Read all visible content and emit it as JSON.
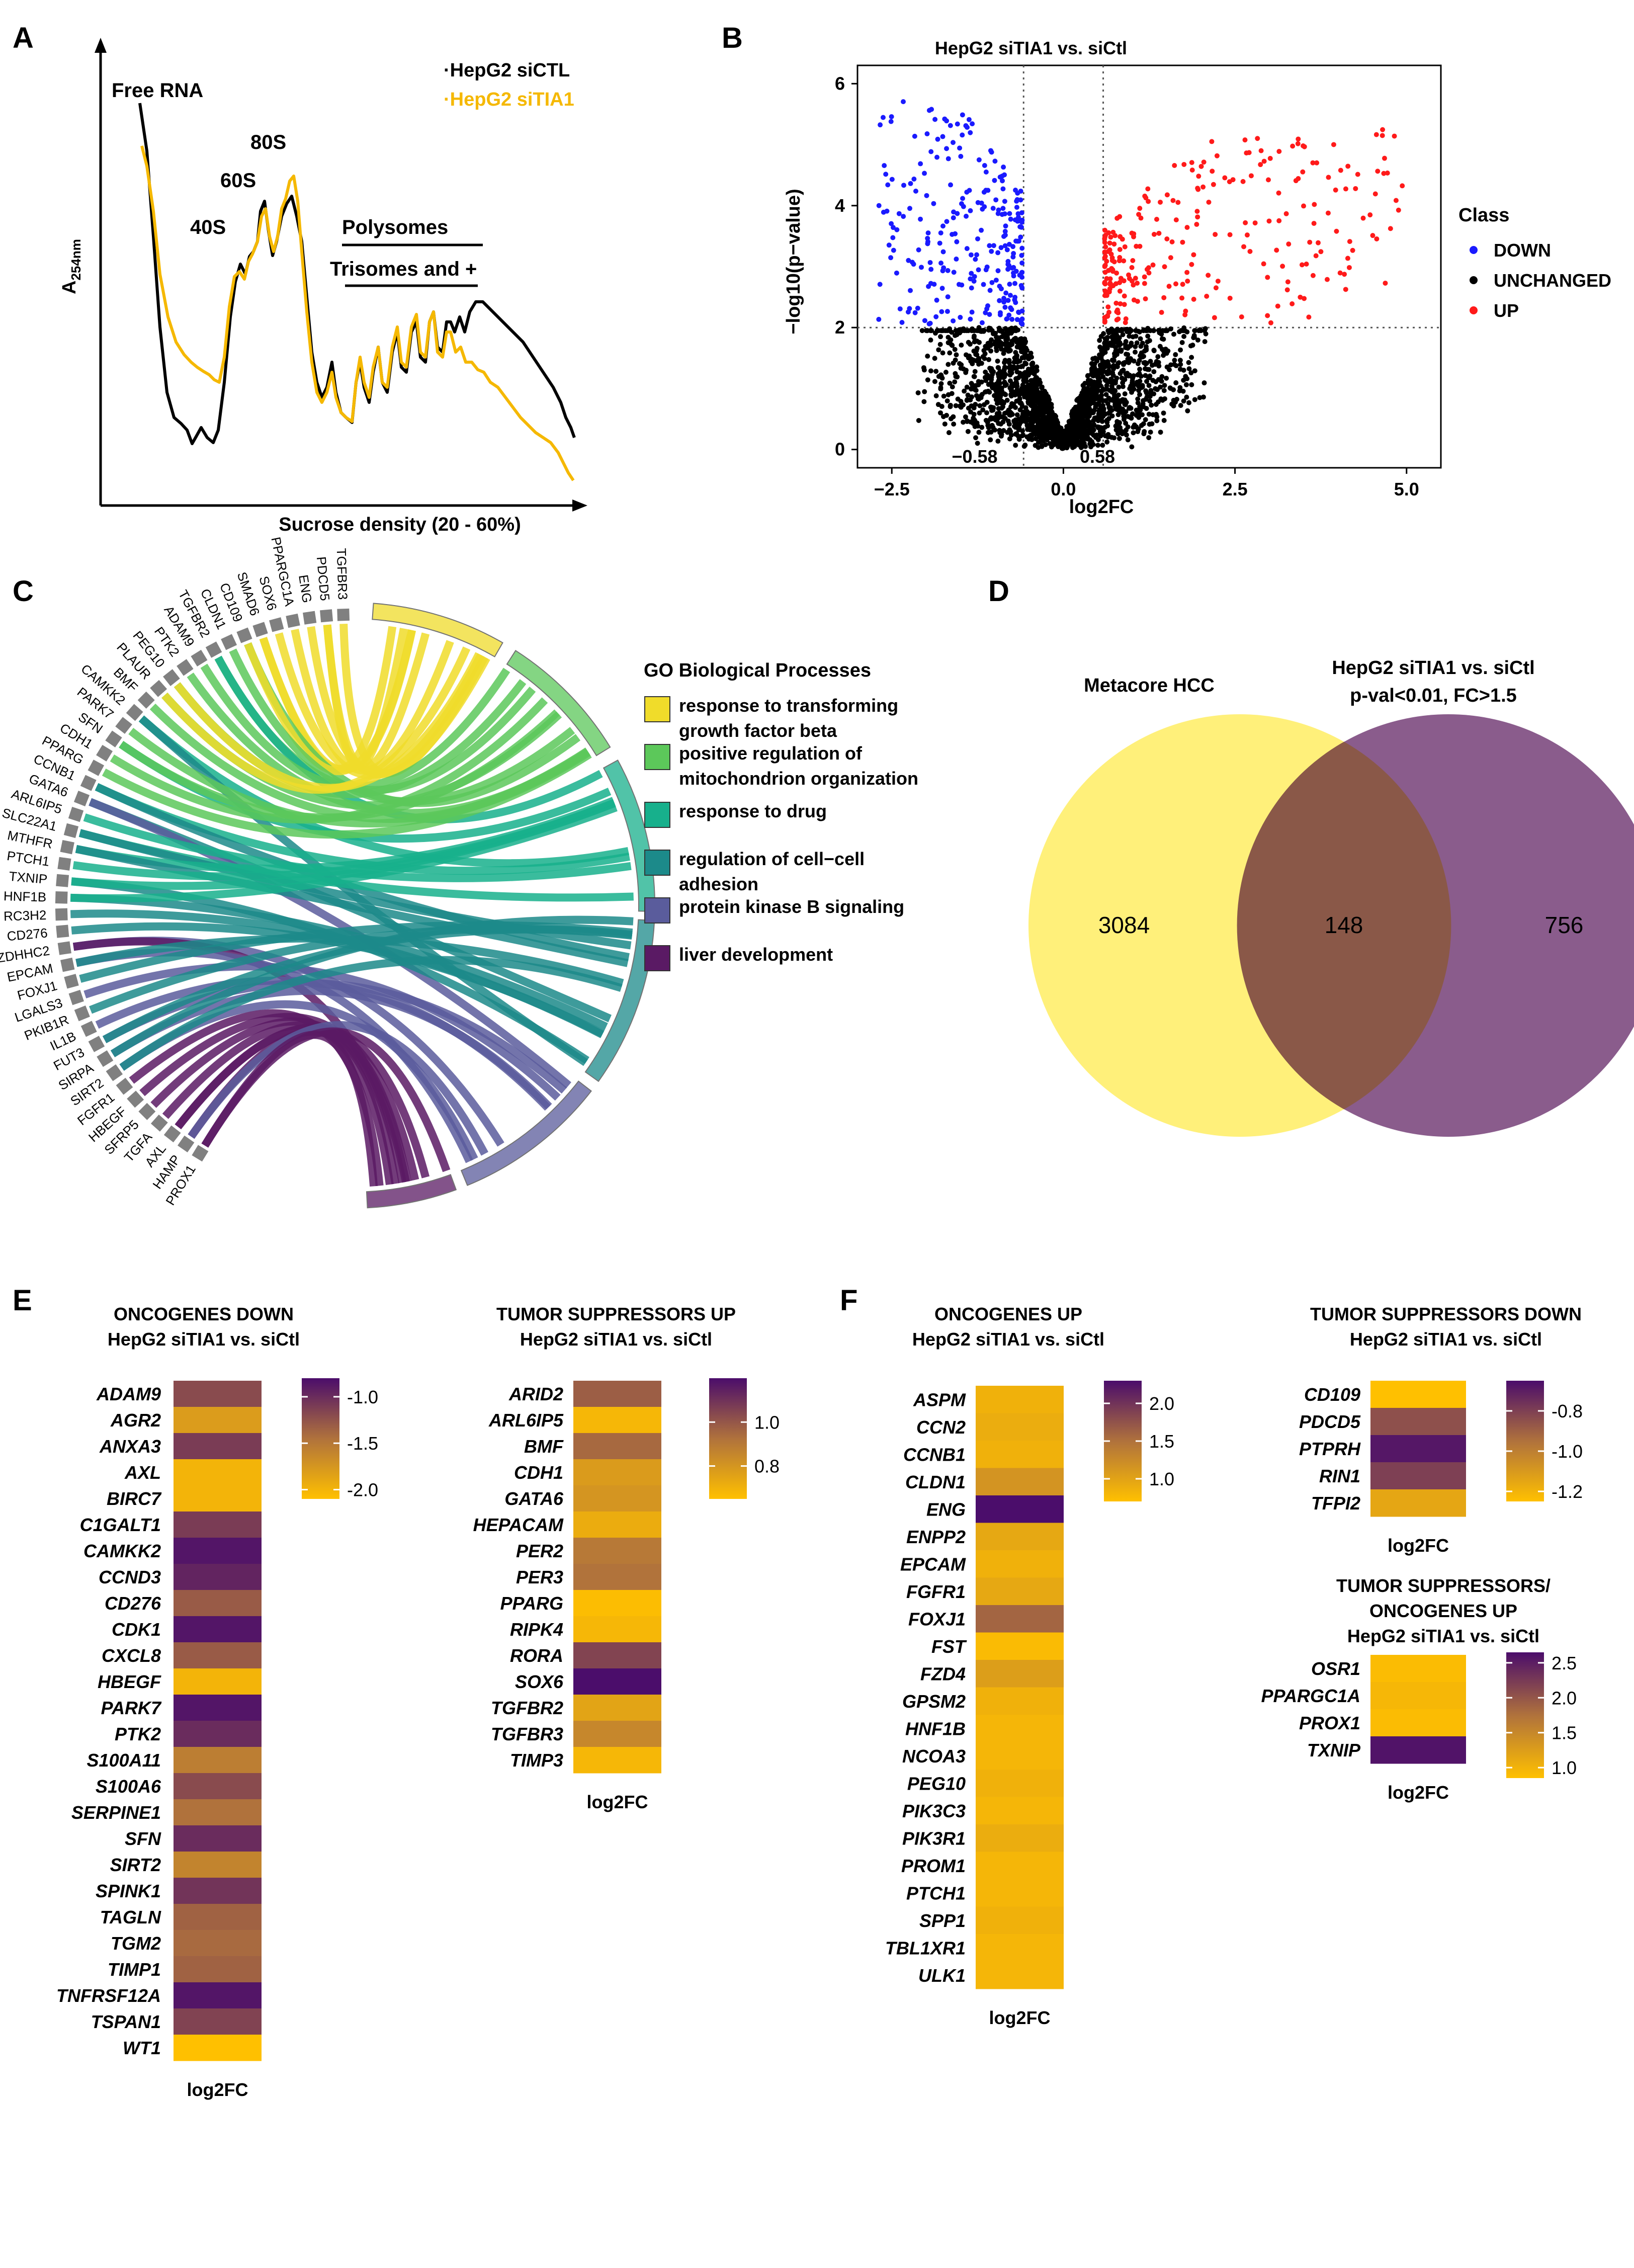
{
  "colors": {
    "ctl": "#000000",
    "tia": "#f5b800",
    "down": "#1a1aff",
    "up": "#ff1a1a",
    "unchanged": "#000000",
    "venn_left": "#fff07a",
    "venn_right": "#8a5c8c",
    "venn_overlap": "#8a5848",
    "grad_low": "#ffc000",
    "grad_high": "#4b0d6b"
  },
  "panelA": {
    "letter": "A",
    "ylabel": "A",
    "ylabel_sub": "254nm",
    "xlabel": "Sucrose density (20 - 60%)",
    "legend": [
      "HepG2 siCTL",
      "HepG2 siTIA1"
    ],
    "peaks": {
      "free": "Free RNA",
      "s40": "40S",
      "s60": "60S",
      "s80": "80S",
      "poly": "Polysomes",
      "tri": "Trisomes and +"
    }
  },
  "panelB": {
    "letter": "B",
    "title": "HepG2 siTIA1 vs. siCtl",
    "xlabel": "log2FC",
    "ylabel": "−log10(p−value)",
    "xticks": [
      "−2.5",
      "0.0",
      "2.5",
      "5.0"
    ],
    "yticks": [
      "0",
      "2",
      "4",
      "6"
    ],
    "thr_left": "−0.58",
    "thr_right": "0.58",
    "legend_title": "Class",
    "legend": [
      "DOWN",
      "UNCHANGED",
      "UP"
    ]
  },
  "panelC": {
    "letter": "C",
    "legend_title": "GO Biological Processes",
    "terms": [
      {
        "label": "response to transforming growth factor beta",
        "color": "#f0dc2a"
      },
      {
        "label": "positive regulation of mitochondrion organization",
        "color": "#5cc85a"
      },
      {
        "label": "response to drug",
        "color": "#17b08c"
      },
      {
        "label": "regulation of cell−cell adhesion",
        "color": "#1c8a8a"
      },
      {
        "label": "protein kinase B signaling",
        "color": "#5a5c9c"
      },
      {
        "label": "liver development",
        "color": "#5a1a64"
      }
    ],
    "genes": [
      "TGFBR3",
      "PDCD5",
      "ENG",
      "PPARGC1A",
      "SOX6",
      "SMAD6",
      "CD109",
      "CLDN1",
      "TGFBR2",
      "ADAM9",
      "PTK2",
      "PEG10",
      "PLAUR",
      "BMF",
      "CAMKK2",
      "PARK7",
      "SFN",
      "CDH1",
      "PPARG",
      "CCNB1",
      "GATA6",
      "ARL6IP5",
      "SLC22A1",
      "MTHFR",
      "PTCH1",
      "TXNIP",
      "HNF1B",
      "RC3H2",
      "CD276",
      "ZDHHC2",
      "EPCAM",
      "FOXJ1",
      "LGALS3",
      "PKIB1R",
      "IL1B",
      "FUT3",
      "SIRPA",
      "SIRT2",
      "FGFR1",
      "HBEGF",
      "SFRP5",
      "TGFA",
      "AXL",
      "HAMP",
      "PROX1"
    ]
  },
  "panelD": {
    "letter": "D",
    "left_title": "Metacore HCC",
    "right_title_1": "HepG2 siTIA1 vs. siCtl",
    "right_title_2": "p-val<0.01, FC>1.5",
    "left_only": "3084",
    "overlap": "148",
    "right_only": "756"
  },
  "panelE": {
    "letter": "E",
    "xlabel": "log2FC"
  },
  "panelF": {
    "letter": "F",
    "xlabel": "log2FC"
  },
  "chart_data": [
    {
      "type": "heatmap",
      "title": "ONCOGENES DOWN",
      "subtitle": "HepG2 siTIA1 vs. siCtl",
      "xlabel": "log2FC",
      "range": [
        -2.1,
        -0.8
      ],
      "ticks": [
        "-1.0",
        "-1.5",
        "-2.0"
      ],
      "tick_values": [
        -1.0,
        -1.5,
        -2.0
      ],
      "genes": [
        "ADAM9",
        "AGR2",
        "ANXA3",
        "AXL",
        "BIRC7",
        "C1GALT1",
        "CAMKK2",
        "CCND3",
        "CD276",
        "CDK1",
        "CXCL8",
        "HBEGF",
        "PARK7",
        "PTK2",
        "S100A11",
        "S100A6",
        "SERPINE1",
        "SFN",
        "SIRT2",
        "SPINK1",
        "TAGLN",
        "TGM2",
        "TIMP1",
        "TNFRSF12A",
        "TSPAN1",
        "WT1"
      ],
      "values": [
        -1.2,
        -1.8,
        -1.1,
        -2.0,
        -2.0,
        -1.1,
        -0.85,
        -0.95,
        -1.3,
        -0.85,
        -1.3,
        -2.0,
        -0.85,
        -1.0,
        -1.55,
        -1.2,
        -1.45,
        -1.0,
        -1.6,
        -1.05,
        -1.35,
        -1.4,
        -1.35,
        -0.85,
        -1.15,
        -2.1
      ]
    },
    {
      "type": "heatmap",
      "title": "TUMOR SUPPRESSORS UP",
      "subtitle": "HepG2 siTIA1 vs. siCtl",
      "xlabel": "log2FC",
      "range": [
        0.65,
        1.2
      ],
      "ticks": [
        "1.0",
        "0.8"
      ],
      "tick_values": [
        1.0,
        0.8
      ],
      "genes": [
        "ARID2",
        "ARL6IP5",
        "BMF",
        "CDH1",
        "GATA6",
        "HEPACAM",
        "PER2",
        "PER3",
        "PPARG",
        "RIPK4",
        "RORA",
        "SOX6",
        "TGFBR2",
        "TGFBR3",
        "TIMP3"
      ],
      "values": [
        0.98,
        0.68,
        0.95,
        0.78,
        0.8,
        0.72,
        0.9,
        0.92,
        0.66,
        0.68,
        1.05,
        1.2,
        0.75,
        0.85,
        0.68
      ]
    },
    {
      "type": "heatmap",
      "title": "ONCOGENES UP",
      "subtitle": "HepG2 siTIA1 vs. siCtl",
      "xlabel": "log2FC",
      "range": [
        0.7,
        2.3
      ],
      "ticks": [
        "2.0",
        "1.5",
        "1.0"
      ],
      "tick_values": [
        2.0,
        1.5,
        1.0
      ],
      "genes": [
        "ASPM",
        "CCN2",
        "CCNB1",
        "CLDN1",
        "ENG",
        "ENPP2",
        "EPCAM",
        "FGFR1",
        "FOXJ1",
        "FST",
        "FZD4",
        "GPSM2",
        "HNF1B",
        "NCOA3",
        "PEG10",
        "PIK3C3",
        "PIK3R1",
        "PROM1",
        "PTCH1",
        "SPP1",
        "TBL1XR1",
        "ULK1"
      ],
      "values": [
        0.85,
        0.9,
        0.85,
        1.15,
        2.3,
        0.95,
        0.85,
        0.95,
        1.6,
        0.75,
        1.05,
        0.85,
        0.8,
        0.8,
        0.85,
        0.8,
        0.9,
        0.8,
        0.8,
        0.85,
        0.8,
        0.8
      ]
    },
    {
      "type": "heatmap",
      "title": "TUMOR SUPPRESSORS DOWN",
      "subtitle": "HepG2 siTIA1 vs. siCtl",
      "xlabel": "log2FC",
      "range": [
        -1.25,
        -0.65
      ],
      "ticks": [
        "-0.8",
        "-1.0",
        "-1.2"
      ],
      "tick_values": [
        -0.8,
        -1.0,
        -1.2
      ],
      "genes": [
        "CD109",
        "PDCD5",
        "PTPRH",
        "RIN1",
        "TFPI2"
      ],
      "values": [
        -1.25,
        -0.85,
        -0.68,
        -0.8,
        -1.15
      ]
    },
    {
      "type": "heatmap",
      "title": "TUMOR SUPPRESSORS/",
      "subtitle2": "ONCOGENES UP",
      "subtitle": "HepG2 siTIA1 vs. siCtl",
      "xlabel": "log2FC",
      "range": [
        0.85,
        2.65
      ],
      "ticks": [
        "2.5",
        "2.0",
        "1.5",
        "1.0"
      ],
      "tick_values": [
        2.5,
        2.0,
        1.5,
        1.0
      ],
      "genes": [
        "OSR1",
        "PPARGC1A",
        "PROX1",
        "TXNIP"
      ],
      "values": [
        0.9,
        0.95,
        0.9,
        2.6
      ]
    }
  ]
}
